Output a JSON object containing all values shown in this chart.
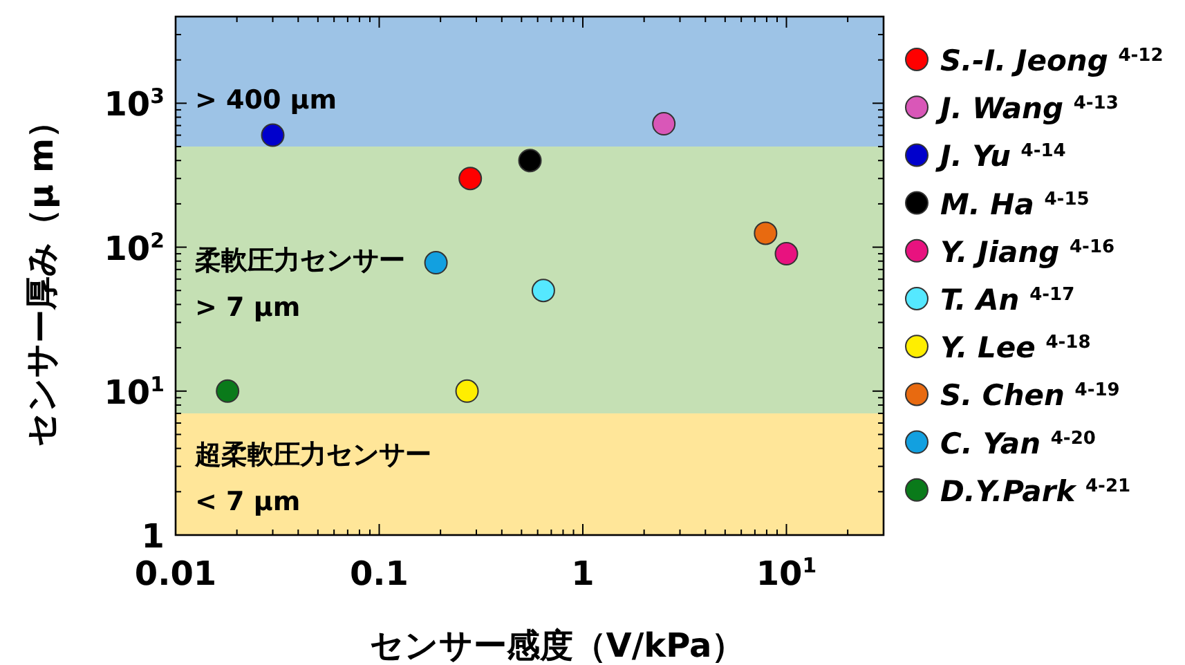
{
  "chart_data": {
    "type": "scatter",
    "xlabel": "センサー感度（V/kPa）",
    "ylabel": "センサー厚み（μ m）",
    "log": "xy",
    "grid": false,
    "legend": "right",
    "marker": "circle",
    "xlim": [
      0.01,
      30
    ],
    "ylim": [
      1,
      4000
    ],
    "xticks": [
      0.01,
      0.1,
      1,
      {
        "value": 10,
        "label": "10$^{1}$"
      }
    ],
    "yticks": [
      1,
      {
        "value": 10,
        "label": "10$^{1}$"
      },
      {
        "value": 100,
        "label": "10$^{2}$"
      },
      {
        "value": 1000,
        "label": "10$^{3}$"
      }
    ],
    "bands": [
      {
        "axis": "y",
        "from": 500,
        "to": 4000,
        "label": "> 400 μm",
        "color": "#9dc3e6"
      },
      {
        "axis": "y",
        "from": 7,
        "to": 500,
        "label": "柔軟圧力センサー\n> 7 μm",
        "color": "#c5e0b4"
      },
      {
        "axis": "y",
        "from": 1,
        "to": 7,
        "label": "超柔軟圧力センサー\n< 7 μm",
        "color": "#ffe699"
      }
    ],
    "series": [
      {
        "name": "*S.-I. Jeong* $^{4-12}$",
        "color": "#ff0000",
        "x": [
          0.28
        ],
        "values": [
          300
        ]
      },
      {
        "name": "*J. Wang* $^{4-13}$",
        "color": "#d957b8",
        "x": [
          2.5
        ],
        "values": [
          720
        ]
      },
      {
        "name": "*J. Yu* $^{4-14}$",
        "color": "#0000cc",
        "x": [
          0.03
        ],
        "values": [
          600
        ]
      },
      {
        "name": "*M. Ha* $^{4-15}$",
        "color": "#000000",
        "x": [
          0.55
        ],
        "values": [
          400
        ]
      },
      {
        "name": "*Y. Jiang* $^{4-16}$",
        "color": "#e8127f",
        "x": [
          10
        ],
        "values": [
          90
        ]
      },
      {
        "name": "*T. An* $^{4-17}$",
        "color": "#55e8ff",
        "x": [
          0.64
        ],
        "values": [
          50
        ]
      },
      {
        "name": "*Y. Lee* $^{4-18}$",
        "color": "#ffee00",
        "x": [
          0.27
        ],
        "values": [
          10
        ]
      },
      {
        "name": "*S. Chen* $^{4-19}$",
        "color": "#e86a10",
        "x": [
          7.9
        ],
        "values": [
          125
        ]
      },
      {
        "name": "*C. Yan* $^{4-20}$",
        "color": "#12a0e0",
        "x": [
          0.19
        ],
        "values": [
          78
        ]
      },
      {
        "name": "*D.Y.Park* $^{4-21}$",
        "color": "#0a7a1a",
        "x": [
          0.018
        ],
        "values": [
          10
        ]
      }
    ]
  }
}
